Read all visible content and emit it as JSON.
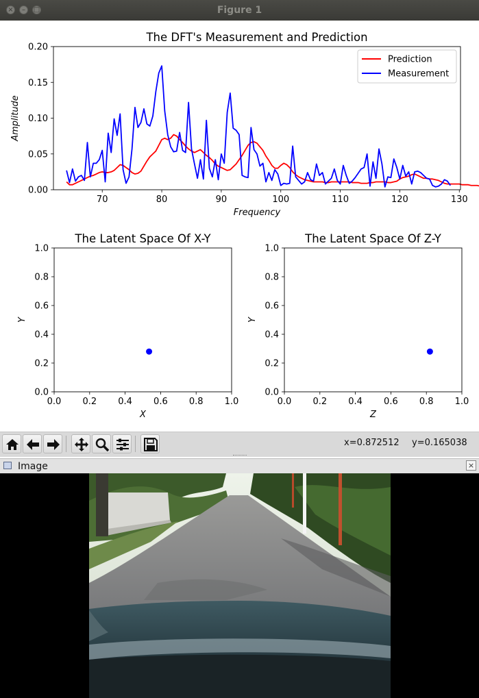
{
  "window": {
    "title": "Figure 1"
  },
  "toolbar": {
    "buttons": [
      "home-button",
      "back-button",
      "forward-button",
      "pan-button",
      "zoom-button",
      "configure-subplots-button",
      "save-button"
    ],
    "x_readout": "x=0.872512",
    "y_readout": "y=0.165038"
  },
  "image_panel": {
    "title": "Image",
    "close_label": "×"
  },
  "colors": {
    "prediction": "#ff0000",
    "measurement": "#0000ff",
    "point": "#0000ff"
  },
  "chart_data": [
    {
      "type": "line",
      "title": "The DFT's Measurement and Prediction",
      "xlabel": "Frequency",
      "ylabel": "Amplitude",
      "xlim": [
        61.8,
        130.2
      ],
      "ylim": [
        0,
        0.2
      ],
      "xticks": [
        "70",
        "80",
        "90",
        "100",
        "110",
        "120",
        "130"
      ],
      "yticks": [
        "0.00",
        "0.05",
        "0.10",
        "0.15",
        "0.20"
      ],
      "legend": "top-right",
      "x_start": 64,
      "x_step": 0.5,
      "series": [
        {
          "name": "Prediction",
          "color": "#ff0000",
          "values": [
            0.011,
            0.007,
            0.007,
            0.009,
            0.011,
            0.013,
            0.015,
            0.017,
            0.019,
            0.02,
            0.022,
            0.024,
            0.025,
            0.024,
            0.024,
            0.025,
            0.027,
            0.031,
            0.035,
            0.034,
            0.031,
            0.028,
            0.024,
            0.022,
            0.023,
            0.026,
            0.033,
            0.04,
            0.046,
            0.05,
            0.054,
            0.062,
            0.07,
            0.072,
            0.07,
            0.072,
            0.077,
            0.075,
            0.07,
            0.066,
            0.061,
            0.057,
            0.054,
            0.052,
            0.054,
            0.056,
            0.052,
            0.048,
            0.045,
            0.041,
            0.036,
            0.033,
            0.031,
            0.029,
            0.027,
            0.028,
            0.032,
            0.036,
            0.042,
            0.048,
            0.055,
            0.062,
            0.066,
            0.067,
            0.065,
            0.06,
            0.055,
            0.047,
            0.041,
            0.034,
            0.03,
            0.03,
            0.034,
            0.037,
            0.035,
            0.031,
            0.025,
            0.021,
            0.018,
            0.016,
            0.014,
            0.013,
            0.012,
            0.011,
            0.011,
            0.011,
            0.011,
            0.01,
            0.01,
            0.011,
            0.011,
            0.011,
            0.011,
            0.011,
            0.011,
            0.011,
            0.01,
            0.01,
            0.01,
            0.009,
            0.009,
            0.009,
            0.01,
            0.01,
            0.011,
            0.011,
            0.011,
            0.011,
            0.01,
            0.01,
            0.011,
            0.012,
            0.015,
            0.017,
            0.018,
            0.019,
            0.021,
            0.022,
            0.02,
            0.018,
            0.016,
            0.016,
            0.015,
            0.015,
            0.014,
            0.013,
            0.011,
            0.009,
            0.008,
            0.008,
            0.008,
            0.008,
            0.008,
            0.007,
            0.007,
            0.007,
            0.006,
            0.006,
            0.006,
            0.005,
            0.006,
            0.006,
            0.006,
            0.005,
            0.004,
            0.004,
            0.003,
            0.002,
            0.003,
            0.004,
            0.005
          ]
        },
        {
          "name": "Measurement",
          "color": "#0000ff",
          "values": [
            0.027,
            0.01,
            0.029,
            0.012,
            0.018,
            0.02,
            0.013,
            0.066,
            0.018,
            0.037,
            0.037,
            0.042,
            0.055,
            0.011,
            0.079,
            0.052,
            0.099,
            0.076,
            0.106,
            0.028,
            0.009,
            0.018,
            0.057,
            0.115,
            0.087,
            0.094,
            0.113,
            0.092,
            0.089,
            0.103,
            0.137,
            0.163,
            0.173,
            0.11,
            0.077,
            0.06,
            0.053,
            0.054,
            0.08,
            0.055,
            0.052,
            0.122,
            0.057,
            0.036,
            0.016,
            0.042,
            0.015,
            0.097,
            0.03,
            0.018,
            0.042,
            0.014,
            0.05,
            0.037,
            0.108,
            0.135,
            0.086,
            0.083,
            0.077,
            0.02,
            0.018,
            0.017,
            0.087,
            0.056,
            0.05,
            0.033,
            0.037,
            0.011,
            0.024,
            0.013,
            0.028,
            0.022,
            0.006,
            0.009,
            0.008,
            0.009,
            0.061,
            0.018,
            0.013,
            0.008,
            0.011,
            0.024,
            0.014,
            0.012,
            0.036,
            0.02,
            0.024,
            0.008,
            0.012,
            0.016,
            0.029,
            0.013,
            0.008,
            0.034,
            0.02,
            0.009,
            0.012,
            0.017,
            0.023,
            0.029,
            0.031,
            0.05,
            0.005,
            0.039,
            0.016,
            0.057,
            0.036,
            0.004,
            0.018,
            0.017,
            0.043,
            0.031,
            0.015,
            0.034,
            0.019,
            0.025,
            0.008,
            0.025,
            0.026,
            0.024,
            0.02,
            0.016,
            0.015,
            0.006,
            0.004,
            0.005,
            0.008,
            0.014,
            0.012,
            0.006
          ]
        }
      ]
    },
    {
      "type": "scatter",
      "title": "The Latent Space Of X-Y",
      "xlabel": "X",
      "ylabel": "Y",
      "xlim": [
        0,
        1
      ],
      "ylim": [
        0,
        1
      ],
      "xticks": [
        "0.0",
        "0.2",
        "0.4",
        "0.6",
        "0.8",
        "1.0"
      ],
      "yticks": [
        "0.0",
        "0.2",
        "0.4",
        "0.6",
        "0.8",
        "1.0"
      ],
      "points": [
        {
          "x": 0.535,
          "y": 0.28
        }
      ]
    },
    {
      "type": "scatter",
      "title": "The Latent Space Of Z-Y",
      "xlabel": "Z",
      "ylabel": "Y",
      "xlim": [
        0,
        1
      ],
      "ylim": [
        0,
        1
      ],
      "xticks": [
        "0.0",
        "0.2",
        "0.4",
        "0.6",
        "0.8",
        "1.0"
      ],
      "yticks": [
        "0.0",
        "0.2",
        "0.4",
        "0.6",
        "0.8",
        "1.0"
      ],
      "points": [
        {
          "x": 0.82,
          "y": 0.28
        }
      ]
    }
  ]
}
